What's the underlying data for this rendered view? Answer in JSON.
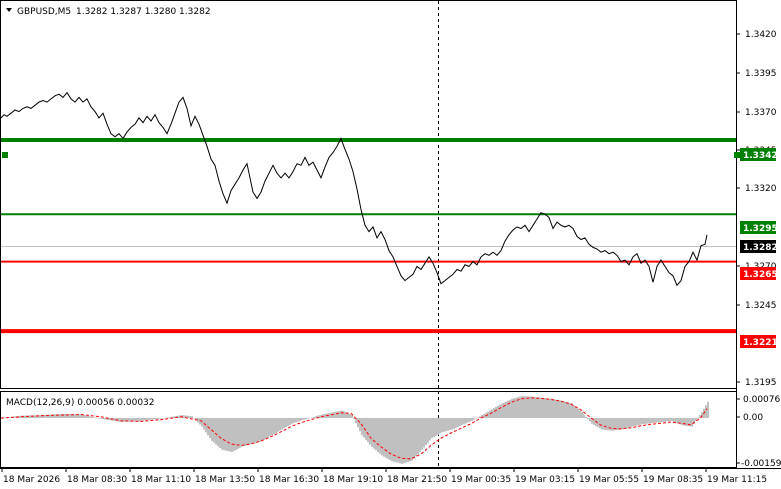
{
  "header": {
    "symbol_label": "GBPUSD,M5",
    "ohlc": "1.3282 1.3287 1.3280 1.3282"
  },
  "price_axis": {
    "ticks": [
      "1.3420",
      "1.3395",
      "1.3370",
      "1.3345",
      "1.3320",
      "1.3270",
      "1.3245",
      "1.3195"
    ],
    "current_price": "1.3282"
  },
  "levels": [
    {
      "label": "1.3342",
      "value": 1.3342,
      "color": "#008000",
      "style": "thick"
    },
    {
      "label": "1.3295",
      "value": 1.3295,
      "color": "#008000",
      "style": "thin"
    },
    {
      "label": "1.3265",
      "value": 1.3265,
      "color": "#ff0000",
      "style": "thin"
    },
    {
      "label": "1.3221",
      "value": 1.3221,
      "color": "#ff0000",
      "style": "thick"
    }
  ],
  "macd": {
    "label": "MACD(12,26,9) 0.00056 0.00032",
    "axis_ticks": [
      "0.00076",
      "0.00",
      "-0.00159"
    ]
  },
  "time_axis": {
    "labels": [
      "18 Mar 2026",
      "18 Mar 08:30",
      "18 Mar 11:10",
      "18 Mar 13:50",
      "18 Mar 16:30",
      "18 Mar 19:10",
      "18 Mar 21:50",
      "19 Mar 00:35",
      "19 Mar 03:15",
      "19 Mar 05:55",
      "19 Mar 08:35",
      "19 Mar 11:15"
    ]
  },
  "colors": {
    "price_line": "#000000",
    "macd_histogram": "#c0c0c0",
    "macd_signal": "#ff0000",
    "support_green": "#008000",
    "resistance_red": "#ff0000"
  },
  "chart_data": {
    "type": "line",
    "price": [
      [
        0,
        1.3356
      ],
      [
        3,
        1.3358
      ],
      [
        6,
        1.3357
      ],
      [
        10,
        1.3359
      ],
      [
        14,
        1.3361
      ],
      [
        18,
        1.336
      ],
      [
        22,
        1.3362
      ],
      [
        26,
        1.3363
      ],
      [
        30,
        1.3362
      ],
      [
        34,
        1.3364
      ],
      [
        38,
        1.3366
      ],
      [
        42,
        1.3367
      ],
      [
        46,
        1.3366
      ],
      [
        50,
        1.3368
      ],
      [
        54,
        1.337
      ],
      [
        58,
        1.3371
      ],
      [
        62,
        1.3369
      ],
      [
        66,
        1.3372
      ],
      [
        70,
        1.3368
      ],
      [
        74,
        1.3366
      ],
      [
        78,
        1.3369
      ],
      [
        82,
        1.3366
      ],
      [
        86,
        1.3368
      ],
      [
        90,
        1.3363
      ],
      [
        94,
        1.336
      ],
      [
        98,
        1.3356
      ],
      [
        102,
        1.3359
      ],
      [
        106,
        1.3352
      ],
      [
        110,
        1.3346
      ],
      [
        114,
        1.3344
      ],
      [
        118,
        1.3346
      ],
      [
        122,
        1.3343
      ],
      [
        126,
        1.3347
      ],
      [
        130,
        1.335
      ],
      [
        134,
        1.3352
      ],
      [
        138,
        1.3356
      ],
      [
        142,
        1.3353
      ],
      [
        146,
        1.3357
      ],
      [
        150,
        1.3354
      ],
      [
        154,
        1.3358
      ],
      [
        158,
        1.3353
      ],
      [
        162,
        1.335
      ],
      [
        166,
        1.3346
      ],
      [
        170,
        1.3352
      ],
      [
        174,
        1.3359
      ],
      [
        178,
        1.3366
      ],
      [
        182,
        1.3369
      ],
      [
        186,
        1.3362
      ],
      [
        190,
        1.3351
      ],
      [
        194,
        1.3357
      ],
      [
        198,
        1.3352
      ],
      [
        202,
        1.3345
      ],
      [
        206,
        1.3338
      ],
      [
        210,
        1.333
      ],
      [
        214,
        1.3326
      ],
      [
        218,
        1.3316
      ],
      [
        222,
        1.3308
      ],
      [
        226,
        1.3302
      ],
      [
        230,
        1.331
      ],
      [
        234,
        1.3314
      ],
      [
        238,
        1.3318
      ],
      [
        242,
        1.3323
      ],
      [
        246,
        1.3327
      ],
      [
        248,
        1.3321
      ],
      [
        252,
        1.3309
      ],
      [
        256,
        1.3305
      ],
      [
        260,
        1.3309
      ],
      [
        264,
        1.3316
      ],
      [
        268,
        1.3321
      ],
      [
        272,
        1.3326
      ],
      [
        276,
        1.3321
      ],
      [
        280,
        1.3318
      ],
      [
        284,
        1.3321
      ],
      [
        288,
        1.3318
      ],
      [
        292,
        1.3322
      ],
      [
        296,
        1.3327
      ],
      [
        300,
        1.3326
      ],
      [
        304,
        1.3331
      ],
      [
        308,
        1.3326
      ],
      [
        312,
        1.3328
      ],
      [
        316,
        1.3323
      ],
      [
        320,
        1.3318
      ],
      [
        324,
        1.3325
      ],
      [
        328,
        1.3331
      ],
      [
        332,
        1.3334
      ],
      [
        336,
        1.3338
      ],
      [
        340,
        1.3343
      ],
      [
        344,
        1.3336
      ],
      [
        348,
        1.333
      ],
      [
        352,
        1.3322
      ],
      [
        356,
        1.3311
      ],
      [
        360,
        1.3298
      ],
      [
        364,
        1.3288
      ],
      [
        368,
        1.3284
      ],
      [
        372,
        1.3287
      ],
      [
        376,
        1.328
      ],
      [
        380,
        1.3284
      ],
      [
        384,
        1.3279
      ],
      [
        388,
        1.3272
      ],
      [
        392,
        1.3268
      ],
      [
        396,
        1.3262
      ],
      [
        400,
        1.3256
      ],
      [
        404,
        1.3253
      ],
      [
        408,
        1.3255
      ],
      [
        412,
        1.3257
      ],
      [
        416,
        1.3262
      ],
      [
        420,
        1.326
      ],
      [
        424,
        1.3264
      ],
      [
        428,
        1.3268
      ],
      [
        432,
        1.3264
      ],
      [
        436,
        1.3258
      ],
      [
        440,
        1.3251
      ],
      [
        444,
        1.3253
      ],
      [
        448,
        1.3255
      ],
      [
        452,
        1.3257
      ],
      [
        456,
        1.326
      ],
      [
        460,
        1.3259
      ],
      [
        464,
        1.3263
      ],
      [
        468,
        1.3262
      ],
      [
        472,
        1.3265
      ],
      [
        476,
        1.3263
      ],
      [
        480,
        1.3268
      ],
      [
        484,
        1.327
      ],
      [
        488,
        1.3269
      ],
      [
        492,
        1.3271
      ],
      [
        496,
        1.3269
      ],
      [
        500,
        1.3272
      ],
      [
        504,
        1.3278
      ],
      [
        508,
        1.3282
      ],
      [
        512,
        1.3285
      ],
      [
        516,
        1.3287
      ],
      [
        520,
        1.3286
      ],
      [
        524,
        1.3288
      ],
      [
        528,
        1.3284
      ],
      [
        532,
        1.3288
      ],
      [
        536,
        1.3292
      ],
      [
        540,
        1.3296
      ],
      [
        544,
        1.3295
      ],
      [
        548,
        1.3293
      ],
      [
        552,
        1.3286
      ],
      [
        556,
        1.329
      ],
      [
        560,
        1.3288
      ],
      [
        564,
        1.3287
      ],
      [
        568,
        1.3288
      ],
      [
        572,
        1.3286
      ],
      [
        576,
        1.3281
      ],
      [
        580,
        1.3279
      ],
      [
        584,
        1.328
      ],
      [
        588,
        1.3276
      ],
      [
        592,
        1.3274
      ],
      [
        596,
        1.3273
      ],
      [
        600,
        1.3271
      ],
      [
        604,
        1.3272
      ],
      [
        608,
        1.327
      ],
      [
        612,
        1.3271
      ],
      [
        616,
        1.3269
      ],
      [
        620,
        1.3265
      ],
      [
        624,
        1.3266
      ],
      [
        628,
        1.3263
      ],
      [
        632,
        1.3268
      ],
      [
        636,
        1.327
      ],
      [
        640,
        1.3264
      ],
      [
        644,
        1.3266
      ],
      [
        648,
        1.3262
      ],
      [
        652,
        1.3252
      ],
      [
        656,
        1.3262
      ],
      [
        660,
        1.3266
      ],
      [
        664,
        1.3262
      ],
      [
        668,
        1.3258
      ],
      [
        672,
        1.3256
      ],
      [
        676,
        1.325
      ],
      [
        680,
        1.3253
      ],
      [
        684,
        1.3262
      ],
      [
        688,
        1.3265
      ],
      [
        692,
        1.3271
      ],
      [
        696,
        1.3266
      ],
      [
        700,
        1.3275
      ],
      [
        704,
        1.3276
      ],
      [
        706,
        1.3282
      ]
    ],
    "macd_hist": [
      [
        0,
        0.0
      ],
      [
        20,
        8e-05
      ],
      [
        40,
        0.0001
      ],
      [
        60,
        0.00014
      ],
      [
        80,
        0.00012
      ],
      [
        100,
        -4e-05
      ],
      [
        120,
        -0.00014
      ],
      [
        140,
        -0.0001
      ],
      [
        160,
        -2e-05
      ],
      [
        180,
        0.0001
      ],
      [
        190,
        6e-05
      ],
      [
        200,
        -0.0003
      ],
      [
        210,
        -0.0008
      ],
      [
        220,
        -0.0011
      ],
      [
        230,
        -0.00118
      ],
      [
        240,
        -0.001
      ],
      [
        250,
        -0.0009
      ],
      [
        260,
        -0.0008
      ],
      [
        270,
        -0.0006
      ],
      [
        280,
        -0.0004
      ],
      [
        290,
        -0.0002
      ],
      [
        300,
        -8e-05
      ],
      [
        320,
        0.00012
      ],
      [
        340,
        0.00026
      ],
      [
        350,
        0.0001
      ],
      [
        360,
        -0.0006
      ],
      [
        370,
        -0.001
      ],
      [
        380,
        -0.0013
      ],
      [
        390,
        -0.0015
      ],
      [
        400,
        -0.00159
      ],
      [
        410,
        -0.00148
      ],
      [
        420,
        -0.0011
      ],
      [
        430,
        -0.0007
      ],
      [
        440,
        -0.0005
      ],
      [
        450,
        -0.0004
      ],
      [
        460,
        -0.00025
      ],
      [
        470,
        -0.0001
      ],
      [
        480,
        0.0001
      ],
      [
        490,
        0.0003
      ],
      [
        500,
        0.0005
      ],
      [
        510,
        0.00066
      ],
      [
        520,
        0.00076
      ],
      [
        530,
        0.00074
      ],
      [
        540,
        0.0007
      ],
      [
        550,
        0.00066
      ],
      [
        560,
        0.0006
      ],
      [
        570,
        0.0005
      ],
      [
        580,
        0.0002
      ],
      [
        590,
        -0.0002
      ],
      [
        600,
        -0.0004
      ],
      [
        610,
        -0.00044
      ],
      [
        620,
        -0.0004
      ],
      [
        630,
        -0.0003
      ],
      [
        640,
        -0.00022
      ],
      [
        650,
        -0.00018
      ],
      [
        660,
        -0.00014
      ],
      [
        670,
        -0.0001
      ],
      [
        680,
        -0.00025
      ],
      [
        690,
        -0.0003
      ],
      [
        700,
        0.0002
      ],
      [
        706,
        0.00056
      ]
    ],
    "macd_signal": [
      [
        0,
        0.0
      ],
      [
        20,
        4e-05
      ],
      [
        40,
        8e-05
      ],
      [
        60,
        0.0001
      ],
      [
        80,
        0.00012
      ],
      [
        100,
        4e-05
      ],
      [
        120,
        -0.0001
      ],
      [
        140,
        -0.00012
      ],
      [
        160,
        -6e-05
      ],
      [
        180,
        4e-05
      ],
      [
        200,
        -0.0001
      ],
      [
        210,
        -0.0004
      ],
      [
        220,
        -0.0007
      ],
      [
        230,
        -0.0009
      ],
      [
        240,
        -0.00095
      ],
      [
        250,
        -0.0009
      ],
      [
        260,
        -0.0008
      ],
      [
        270,
        -0.00065
      ],
      [
        280,
        -0.00048
      ],
      [
        290,
        -0.0003
      ],
      [
        300,
        -0.00016
      ],
      [
        320,
        4e-05
      ],
      [
        340,
        0.00018
      ],
      [
        350,
        0.00016
      ],
      [
        360,
        -0.0002
      ],
      [
        370,
        -0.0007
      ],
      [
        380,
        -0.001
      ],
      [
        390,
        -0.00125
      ],
      [
        400,
        -0.0014
      ],
      [
        410,
        -0.00142
      ],
      [
        420,
        -0.00125
      ],
      [
        430,
        -0.00095
      ],
      [
        440,
        -0.0007
      ],
      [
        450,
        -0.00052
      ],
      [
        460,
        -0.00036
      ],
      [
        470,
        -0.0002
      ],
      [
        480,
        0.0
      ],
      [
        490,
        0.00016
      ],
      [
        500,
        0.00036
      ],
      [
        510,
        0.00054
      ],
      [
        520,
        0.00066
      ],
      [
        530,
        0.0007
      ],
      [
        540,
        0.00068
      ],
      [
        550,
        0.00064
      ],
      [
        560,
        0.00058
      ],
      [
        570,
        0.00048
      ],
      [
        580,
        0.00028
      ],
      [
        590,
        0.0
      ],
      [
        600,
        -0.00025
      ],
      [
        610,
        -0.00036
      ],
      [
        620,
        -0.00038
      ],
      [
        630,
        -0.00034
      ],
      [
        640,
        -0.00027
      ],
      [
        650,
        -0.00022
      ],
      [
        660,
        -0.00018
      ],
      [
        670,
        -0.00014
      ],
      [
        680,
        -0.00018
      ],
      [
        690,
        -0.00024
      ],
      [
        700,
        2e-05
      ],
      [
        706,
        0.00032
      ]
    ],
    "price_ylim": [
      1.3185,
      1.343
    ],
    "macd_ylim": [
      -0.0017,
      0.0009
    ],
    "x_range": [
      0,
      736
    ]
  }
}
